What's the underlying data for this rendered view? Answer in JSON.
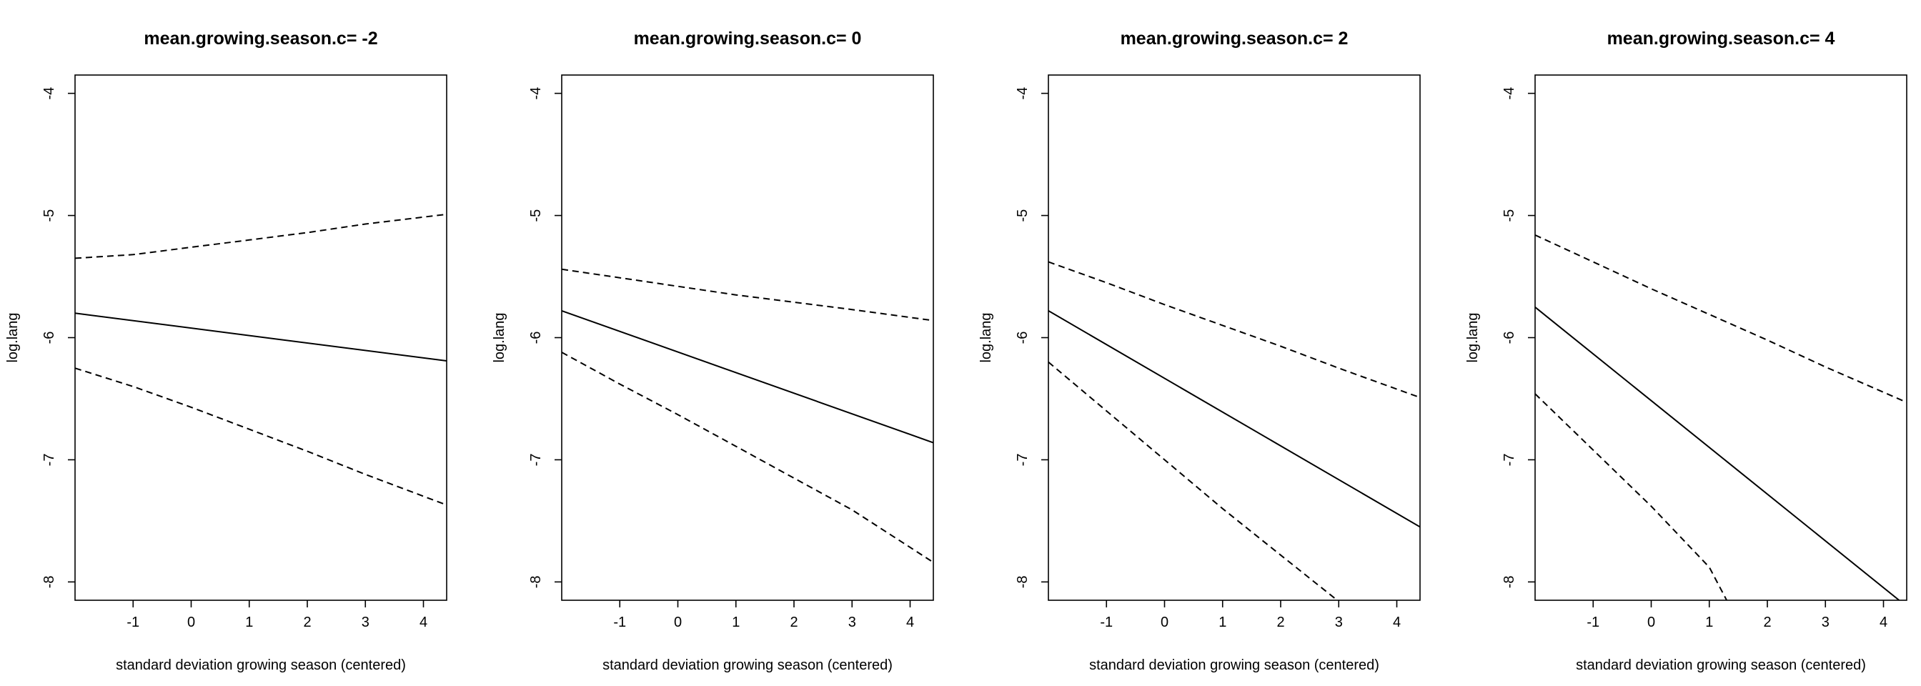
{
  "chart_data": [
    {
      "type": "line",
      "title": "mean.growing.season.c= -2",
      "xlabel": "standard deviation growing season (centered)",
      "ylabel": "log.lang",
      "xlim": [
        -2.0,
        4.4
      ],
      "ylim": [
        -8.15,
        -3.85
      ],
      "xticks": [
        -1,
        0,
        1,
        2,
        3,
        4
      ],
      "yticks": [
        -4,
        -5,
        -6,
        -7,
        -8
      ],
      "grid": false,
      "series": [
        {
          "role": "estimate",
          "style": "solid",
          "x": [
            -2.0,
            4.4
          ],
          "y": [
            -5.8,
            -6.19
          ]
        },
        {
          "role": "upper",
          "style": "dashed",
          "x": [
            -2.0,
            -1.0,
            0.0,
            1.0,
            2.0,
            3.0,
            4.4
          ],
          "y": [
            -5.35,
            -5.32,
            -5.26,
            -5.2,
            -5.14,
            -5.07,
            -4.99
          ]
        },
        {
          "role": "lower",
          "style": "dashed",
          "x": [
            -2.0,
            -1.0,
            0.0,
            1.0,
            2.0,
            3.0,
            4.4
          ],
          "y": [
            -6.25,
            -6.4,
            -6.57,
            -6.75,
            -6.93,
            -7.12,
            -7.37
          ]
        }
      ]
    },
    {
      "type": "line",
      "title": "mean.growing.season.c= 0",
      "xlabel": "standard deviation growing season (centered)",
      "ylabel": "log.lang",
      "xlim": [
        -2.0,
        4.4
      ],
      "ylim": [
        -8.15,
        -3.85
      ],
      "xticks": [
        -1,
        0,
        1,
        2,
        3,
        4
      ],
      "yticks": [
        -4,
        -5,
        -6,
        -7,
        -8
      ],
      "grid": false,
      "series": [
        {
          "role": "estimate",
          "style": "solid",
          "x": [
            -2.0,
            4.4
          ],
          "y": [
            -5.78,
            -6.86
          ]
        },
        {
          "role": "upper",
          "style": "dashed",
          "x": [
            -2.0,
            -1.0,
            0.0,
            1.0,
            2.0,
            3.0,
            4.4
          ],
          "y": [
            -5.44,
            -5.51,
            -5.58,
            -5.65,
            -5.71,
            -5.77,
            -5.86
          ]
        },
        {
          "role": "lower",
          "style": "dashed",
          "x": [
            -2.0,
            -1.0,
            0.0,
            1.0,
            2.0,
            3.0,
            4.4
          ],
          "y": [
            -6.12,
            -6.38,
            -6.63,
            -6.89,
            -7.15,
            -7.41,
            -7.84
          ]
        }
      ]
    },
    {
      "type": "line",
      "title": "mean.growing.season.c= 2",
      "xlabel": "standard deviation growing season (centered)",
      "ylabel": "log.lang",
      "xlim": [
        -2.0,
        4.4
      ],
      "ylim": [
        -8.15,
        -3.85
      ],
      "xticks": [
        -1,
        0,
        1,
        2,
        3,
        4
      ],
      "yticks": [
        -4,
        -5,
        -6,
        -7,
        -8
      ],
      "grid": false,
      "series": [
        {
          "role": "estimate",
          "style": "solid",
          "x": [
            -2.0,
            4.4
          ],
          "y": [
            -5.78,
            -7.55
          ]
        },
        {
          "role": "upper",
          "style": "dashed",
          "x": [
            -2.0,
            -1.0,
            0.0,
            1.0,
            2.0,
            3.0,
            4.4
          ],
          "y": [
            -5.38,
            -5.55,
            -5.73,
            -5.9,
            -6.07,
            -6.25,
            -6.49
          ]
        },
        {
          "role": "lower",
          "style": "dashed",
          "x": [
            -2.0,
            -1.0,
            0.0,
            1.0,
            2.0,
            3.0
          ],
          "y": [
            -6.2,
            -6.6,
            -7.0,
            -7.4,
            -7.78,
            -8.16
          ]
        }
      ]
    },
    {
      "type": "line",
      "title": "mean.growing.season.c= 4",
      "xlabel": "standard deviation growing season (centered)",
      "ylabel": "log.lang",
      "xlim": [
        -2.0,
        4.4
      ],
      "ylim": [
        -8.15,
        -3.85
      ],
      "xticks": [
        -1,
        0,
        1,
        2,
        3,
        4
      ],
      "yticks": [
        -4,
        -5,
        -6,
        -7,
        -8
      ],
      "grid": false,
      "series": [
        {
          "role": "estimate",
          "style": "solid",
          "x": [
            -2.0,
            4.27
          ],
          "y": [
            -5.75,
            -8.15
          ]
        },
        {
          "role": "upper",
          "style": "dashed",
          "x": [
            -2.0,
            -1.0,
            0.0,
            1.0,
            2.0,
            3.0,
            4.4
          ],
          "y": [
            -5.16,
            -5.38,
            -5.6,
            -5.81,
            -6.02,
            -6.24,
            -6.53
          ]
        },
        {
          "role": "lower",
          "style": "dashed",
          "x": [
            -2.0,
            -1.0,
            0.0,
            1.0,
            1.3
          ],
          "y": [
            -6.46,
            -6.92,
            -7.38,
            -7.88,
            -8.15
          ]
        }
      ]
    }
  ]
}
